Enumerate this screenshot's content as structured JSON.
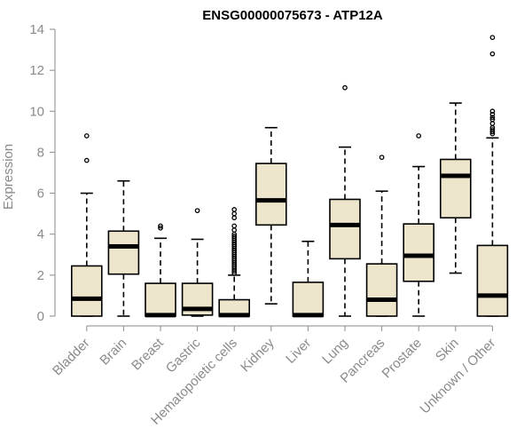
{
  "chart_data": {
    "type": "boxplot",
    "title": "ENSG00000075673 - ATP12A",
    "xlabel": "",
    "ylabel": "Expression",
    "ylim": [
      0,
      14
    ],
    "yticks": [
      0,
      2,
      4,
      6,
      8,
      10,
      12,
      14
    ],
    "grid": false,
    "colors": {
      "box_fill": "#ede6cc",
      "stroke": "#000000",
      "axis": "#8a8a8a",
      "text": "#8a8a8a"
    },
    "series": [
      {
        "name": "Bladder",
        "whisker_low": 0,
        "q1": 0,
        "median": 0.85,
        "q3": 2.45,
        "whisker_high": 6.0,
        "outliers": [
          7.6,
          8.8
        ]
      },
      {
        "name": "Brain",
        "whisker_low": 0,
        "q1": 2.05,
        "median": 3.4,
        "q3": 4.15,
        "whisker_high": 6.6,
        "outliers": []
      },
      {
        "name": "Breast",
        "whisker_low": 0,
        "q1": 0,
        "median": 0.05,
        "q3": 1.6,
        "whisker_high": 3.8,
        "outliers": [
          4.3,
          4.4
        ]
      },
      {
        "name": "Gastric",
        "whisker_low": 0,
        "q1": 0.05,
        "median": 0.35,
        "q3": 1.6,
        "whisker_high": 3.75,
        "outliers": [
          5.15
        ]
      },
      {
        "name": "Hematopoietic cells",
        "whisker_low": 0,
        "q1": 0,
        "median": 0.05,
        "q3": 0.8,
        "whisker_high": 2.0,
        "outliers": [
          2.1,
          2.2,
          2.3,
          2.4,
          2.5,
          2.6,
          2.7,
          2.8,
          2.9,
          3.0,
          3.1,
          3.2,
          3.3,
          3.4,
          3.5,
          3.6,
          3.7,
          3.8,
          3.9,
          4.0,
          4.2,
          4.4,
          4.8,
          5.0,
          5.2
        ]
      },
      {
        "name": "Kidney",
        "whisker_low": 0.6,
        "q1": 4.45,
        "median": 5.65,
        "q3": 7.45,
        "whisker_high": 9.2,
        "outliers": []
      },
      {
        "name": "Liver",
        "whisker_low": 0,
        "q1": 0,
        "median": 0.05,
        "q3": 1.65,
        "whisker_high": 3.65,
        "outliers": []
      },
      {
        "name": "Lung",
        "whisker_low": 0,
        "q1": 2.8,
        "median": 4.45,
        "q3": 5.7,
        "whisker_high": 8.25,
        "outliers": [
          11.15
        ]
      },
      {
        "name": "Pancreas",
        "whisker_low": 0,
        "q1": 0,
        "median": 0.8,
        "q3": 2.55,
        "whisker_high": 6.1,
        "outliers": [
          7.75
        ]
      },
      {
        "name": "Prostate",
        "whisker_low": 0,
        "q1": 1.7,
        "median": 2.95,
        "q3": 4.5,
        "whisker_high": 7.3,
        "outliers": [
          8.8
        ]
      },
      {
        "name": "Skin",
        "whisker_low": 2.1,
        "q1": 4.8,
        "median": 6.85,
        "q3": 7.65,
        "whisker_high": 10.4,
        "outliers": []
      },
      {
        "name": "Unknown / Other",
        "whisker_low": 0,
        "q1": 0,
        "median": 1.0,
        "q3": 3.45,
        "whisker_high": 8.7,
        "outliers": [
          8.9,
          9.0,
          9.1,
          9.2,
          9.4,
          9.6,
          9.7,
          9.85,
          10.0,
          12.8,
          13.6
        ]
      }
    ]
  }
}
